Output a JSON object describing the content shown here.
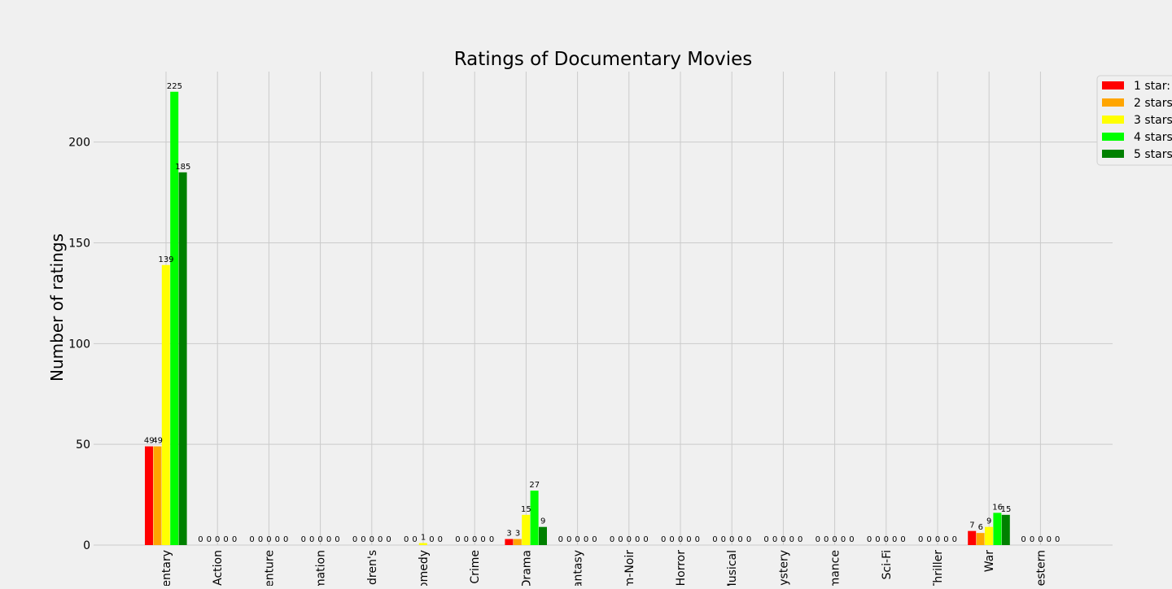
{
  "chart_data": {
    "type": "bar",
    "title": "Ratings of Documentary Movies",
    "ylabel": "Number of ratings",
    "xlabel": "",
    "ylim": [
      0,
      235
    ],
    "yticks": [
      0,
      50,
      100,
      150,
      200
    ],
    "ytick_labels": [
      "0",
      "50",
      "100",
      "150",
      "200"
    ],
    "grid": true,
    "legend_position": "top-right",
    "categories": [
      "Documentary",
      "Action",
      "Adventure",
      "Animation",
      "Children's",
      "Comedy",
      "Crime",
      "Drama",
      "Fantasy",
      "Film-Noir",
      "Horror",
      "Musical",
      "Mystery",
      "Romance",
      "Sci-Fi",
      "Thriller",
      "War",
      "Western"
    ],
    "category_labels_visible": [
      "entary",
      "Action",
      "enture",
      "mation",
      "ldren's",
      "omedy",
      "Crime",
      "Drama",
      "antasy",
      "m-Noir",
      "Horror",
      "Musical",
      "ystery",
      "mance",
      "Sci-Fi",
      "Thriller",
      "War",
      "estern"
    ],
    "series": [
      {
        "name": "1 star:",
        "color": "#ff0000",
        "values": [
          49,
          0,
          0,
          0,
          0,
          0,
          0,
          3,
          0,
          0,
          0,
          0,
          0,
          0,
          0,
          0,
          7,
          0
        ]
      },
      {
        "name": "2 stars",
        "color": "#ffa500",
        "values": [
          49,
          0,
          0,
          0,
          0,
          0,
          0,
          3,
          0,
          0,
          0,
          0,
          0,
          0,
          0,
          0,
          6,
          0
        ]
      },
      {
        "name": "3 stars",
        "color": "#ffff00",
        "values": [
          139,
          0,
          0,
          0,
          0,
          1,
          0,
          15,
          0,
          0,
          0,
          0,
          0,
          0,
          0,
          0,
          9,
          0
        ]
      },
      {
        "name": "4 stars",
        "color": "#00ff00",
        "values": [
          225,
          0,
          0,
          0,
          0,
          0,
          0,
          27,
          0,
          0,
          0,
          0,
          0,
          0,
          0,
          0,
          16,
          0
        ]
      },
      {
        "name": "5 stars",
        "color": "#008000",
        "values": [
          185,
          0,
          0,
          0,
          0,
          0,
          0,
          9,
          0,
          0,
          0,
          0,
          0,
          0,
          0,
          0,
          15,
          0
        ]
      }
    ]
  },
  "colors": {
    "background": "#f0f0f0",
    "grid": "#cbcbcb",
    "text": "#000000"
  }
}
